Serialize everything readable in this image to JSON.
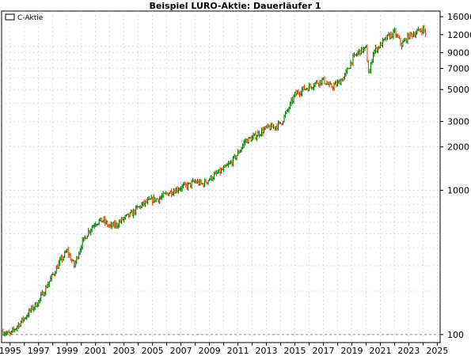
{
  "chart_data": {
    "type": "line",
    "title": "Beispiel LURO-Aktie: Dauerläufer 1",
    "xlabel": "",
    "ylabel": "",
    "y_scale": "log",
    "ylim": [
      88,
      17500
    ],
    "xlim": [
      1994.4,
      2025.2
    ],
    "x_ticks": [
      "1995",
      "1997",
      "1999",
      "2001",
      "2003",
      "2005",
      "2007",
      "2009",
      "2011",
      "2013",
      "2015",
      "2017",
      "2019",
      "2021",
      "2023",
      "2025"
    ],
    "y_ticks": [
      "100",
      "1000",
      "2000",
      "3000",
      "5000",
      "7000",
      "9000",
      "12000",
      "16000"
    ],
    "grid": true,
    "legend_position": "top-left",
    "reference_line": 100,
    "series": [
      {
        "name": "C-Aktie",
        "x": [
          1994.5,
          1995.0,
          1995.5,
          1996.0,
          1996.5,
          1997.0,
          1997.5,
          1998.0,
          1998.5,
          1999.0,
          1999.5,
          2000.0,
          2000.5,
          2001.0,
          2001.5,
          2002.0,
          2002.5,
          2003.0,
          2003.5,
          2004.0,
          2004.5,
          2005.0,
          2005.5,
          2006.0,
          2006.5,
          2007.0,
          2007.5,
          2008.0,
          2008.5,
          2009.0,
          2009.5,
          2010.0,
          2010.5,
          2011.0,
          2011.5,
          2012.0,
          2012.5,
          2013.0,
          2013.5,
          2014.0,
          2014.5,
          2015.0,
          2015.5,
          2016.0,
          2016.5,
          2017.0,
          2017.5,
          2018.0,
          2018.5,
          2019.0,
          2019.5,
          2020.0,
          2020.2,
          2020.5,
          2021.0,
          2021.5,
          2022.0,
          2022.5,
          2023.0,
          2023.5,
          2024.0,
          2024.2
        ],
        "y": [
          105,
          100,
          115,
          130,
          150,
          170,
          210,
          260,
          320,
          380,
          300,
          420,
          520,
          600,
          620,
          560,
          580,
          640,
          680,
          760,
          820,
          860,
          880,
          950,
          1000,
          1050,
          1080,
          1150,
          1100,
          1200,
          1300,
          1400,
          1550,
          1800,
          2200,
          2300,
          2500,
          2700,
          2750,
          2900,
          3600,
          4600,
          5000,
          5200,
          5600,
          5800,
          5200,
          5500,
          6200,
          8000,
          9200,
          9600,
          6200,
          9100,
          10200,
          11500,
          12400,
          10200,
          11800,
          12400,
          13200,
          12200
        ]
      }
    ]
  },
  "colors": {
    "up": "#008000",
    "down": "#ff4000",
    "grid": "#cfcfcf",
    "reference_line": "#888888"
  }
}
